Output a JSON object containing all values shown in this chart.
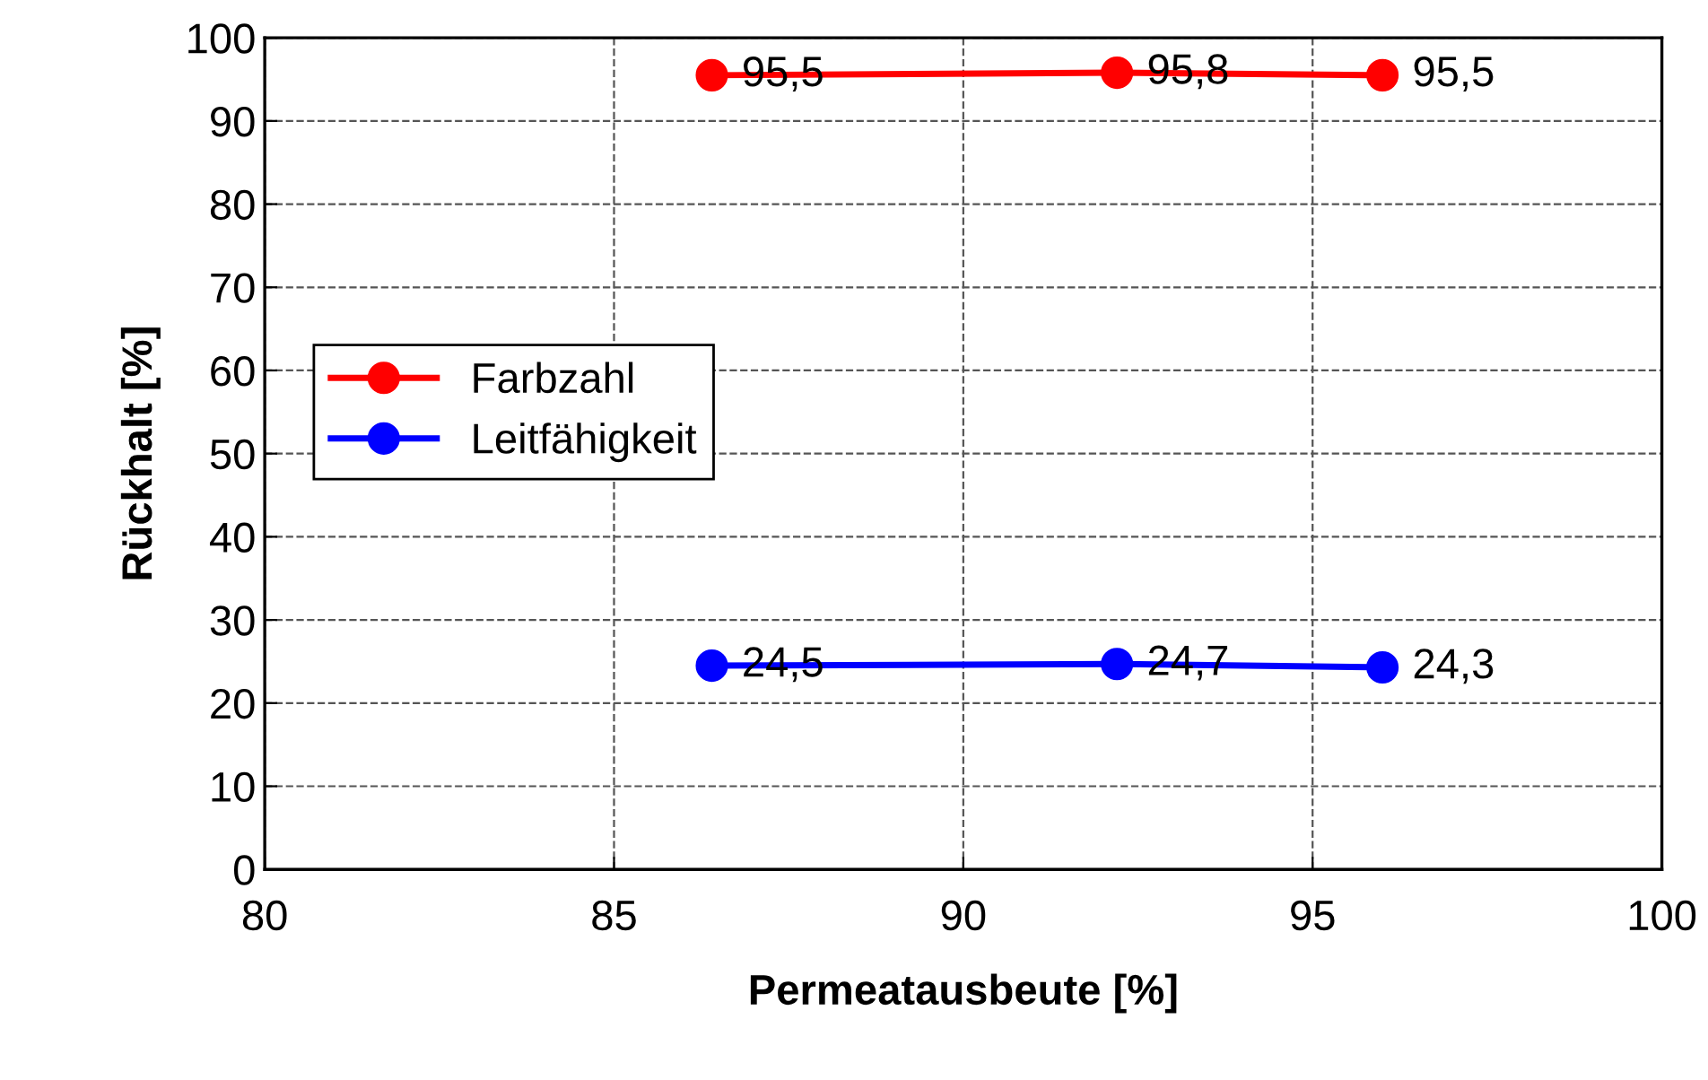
{
  "chart_data": {
    "type": "line",
    "xlabel": "Permeatausbeute [%]",
    "ylabel": "Rückhalt [%]",
    "xlim": [
      80,
      100
    ],
    "xticks": [
      80,
      85,
      90,
      95,
      100
    ],
    "ylim": [
      0,
      100
    ],
    "yticks": [
      0,
      10,
      20,
      30,
      40,
      50,
      60,
      70,
      80,
      90,
      100
    ],
    "grid": true,
    "legend": "left",
    "marker": "circle",
    "line_style": "solid",
    "series": [
      {
        "name": "Farbzahl",
        "color": "#ff0000",
        "x": [
          86.4,
          92.2,
          96.0
        ],
        "values": [
          95.5,
          95.8,
          95.5
        ],
        "value_labels": [
          "95,5",
          "95,8",
          "95,5"
        ]
      },
      {
        "name": "Leitfähigkeit",
        "color": "#0000ff",
        "x": [
          86.4,
          92.2,
          96.0
        ],
        "values": [
          24.5,
          24.7,
          24.3
        ],
        "value_labels": [
          "24,5",
          "24,7",
          "24,3"
        ]
      }
    ]
  }
}
